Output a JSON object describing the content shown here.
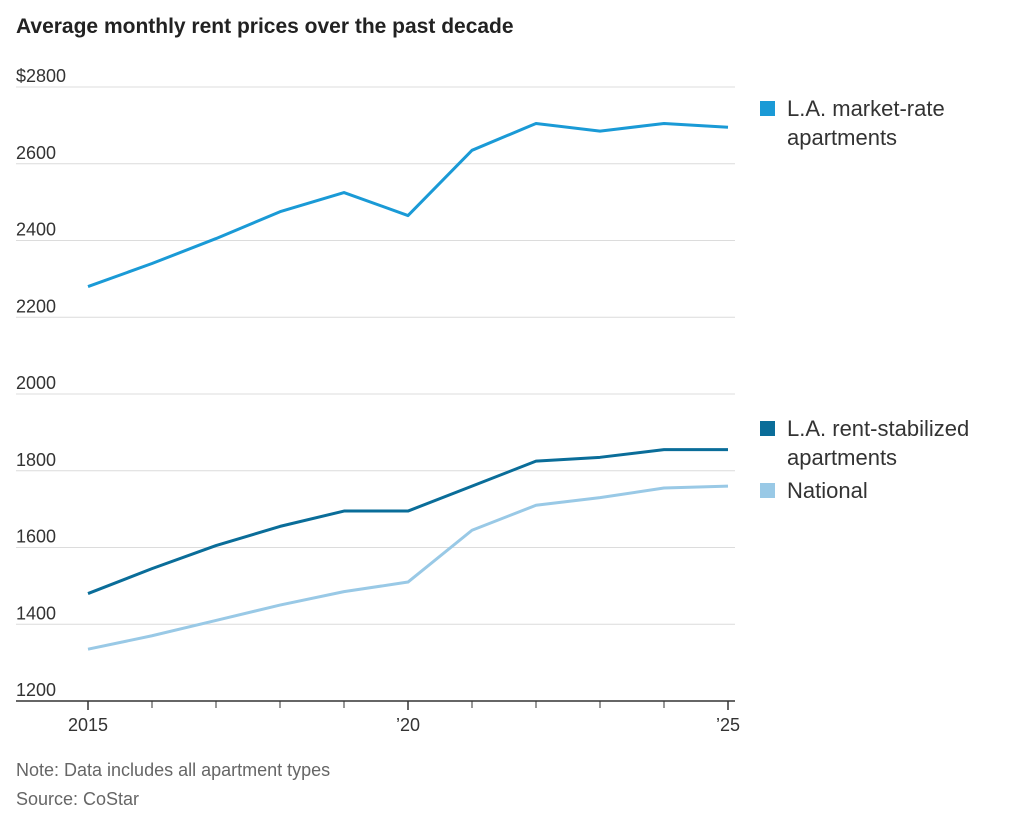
{
  "chart_data": {
    "type": "line",
    "title": "Average monthly rent prices over the past decade",
    "x": [
      2015,
      2016,
      2017,
      2018,
      2019,
      2020,
      2021,
      2022,
      2023,
      2024,
      2025
    ],
    "series": [
      {
        "name": "L.A. market-rate apartments",
        "color": "#1a9ad6",
        "values": [
          2280,
          2340,
          2405,
          2475,
          2525,
          2465,
          2635,
          2705,
          2685,
          2705,
          2695
        ]
      },
      {
        "name": "L.A. rent-stabilized apartments",
        "color": "#0a6d99",
        "values": [
          1480,
          1545,
          1605,
          1655,
          1695,
          1695,
          1760,
          1825,
          1835,
          1855,
          1855
        ]
      },
      {
        "name": "National",
        "color": "#99c9e6",
        "values": [
          1335,
          1370,
          1410,
          1450,
          1485,
          1510,
          1645,
          1710,
          1730,
          1755,
          1760
        ]
      }
    ],
    "xlim": [
      2015,
      2025
    ],
    "xticks": [
      2015,
      {
        "value": 2020,
        "label": "’20"
      },
      {
        "value": 2025,
        "label": "’25"
      }
    ],
    "ylim": [
      1200,
      2800
    ],
    "yticks": [
      1200,
      1400,
      1600,
      1800,
      2000,
      2200,
      2400,
      2600,
      {
        "value": 2800,
        "label": "$2800"
      }
    ],
    "grid": true,
    "note": "Note: Data includes all apartment types",
    "source": "Source: CoStar"
  }
}
